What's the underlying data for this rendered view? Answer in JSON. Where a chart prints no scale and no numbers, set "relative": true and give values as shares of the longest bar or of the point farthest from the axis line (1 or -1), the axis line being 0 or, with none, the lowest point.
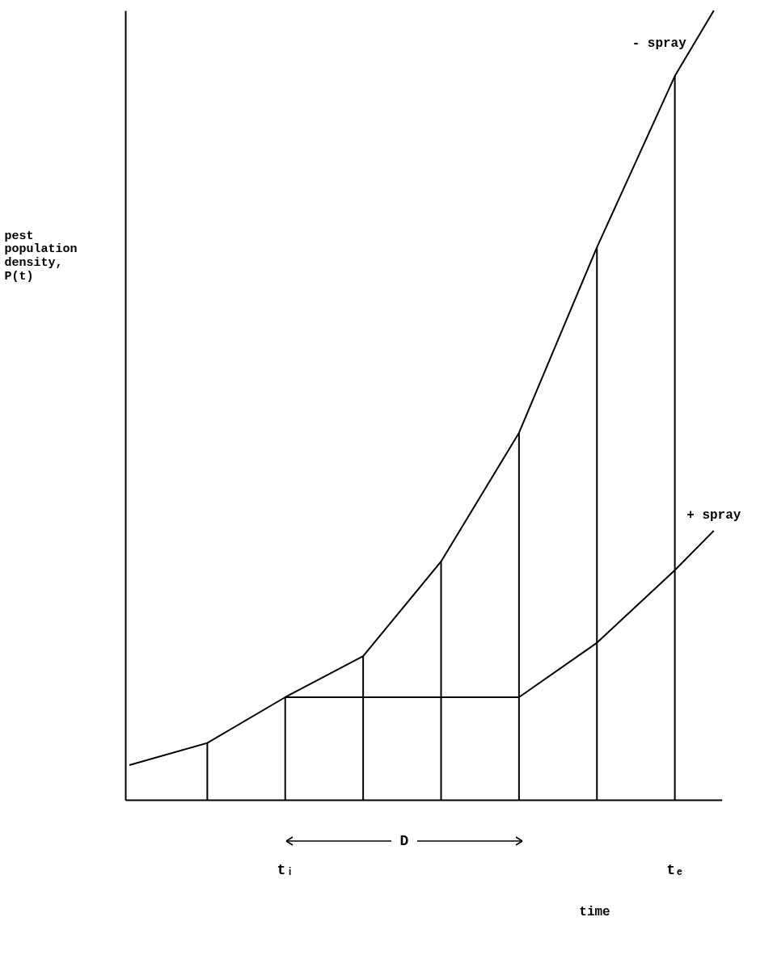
{
  "chart_data": {
    "type": "line",
    "relative": true,
    "xlabel": "time",
    "ylabel": "pest population density, P(t)",
    "categories": [
      null,
      null,
      null,
      null,
      "tᵢ",
      null,
      null,
      null,
      null,
      null,
      null,
      null,
      null,
      null,
      "tₑ",
      null
    ],
    "series": [
      {
        "name": "- spray",
        "color": "#000000",
        "values": [
          0.044,
          null,
          0.072,
          null,
          0.13,
          null,
          0.182,
          null,
          0.302,
          null,
          0.465,
          null,
          0.7,
          null,
          0.917,
          1
        ]
      },
      {
        "name": "+ spray",
        "color": "#000000",
        "values": [
          null,
          null,
          null,
          null,
          0.13,
          null,
          0.13,
          null,
          0.13,
          null,
          0.13,
          null,
          0.199,
          null,
          0.291,
          0.341
        ]
      },
      {
        "type": "bar",
        "color": "#000000",
        "values": [
          null,
          null,
          0.072,
          null,
          0.13,
          null,
          0.182,
          null,
          0.302,
          null,
          0.465,
          null,
          0.7,
          null,
          0.917,
          null
        ]
      }
    ],
    "annotations": [
      "D"
    ],
    "legend": false,
    "grid": false,
    "marker": "none",
    "line_style": "solid"
  }
}
